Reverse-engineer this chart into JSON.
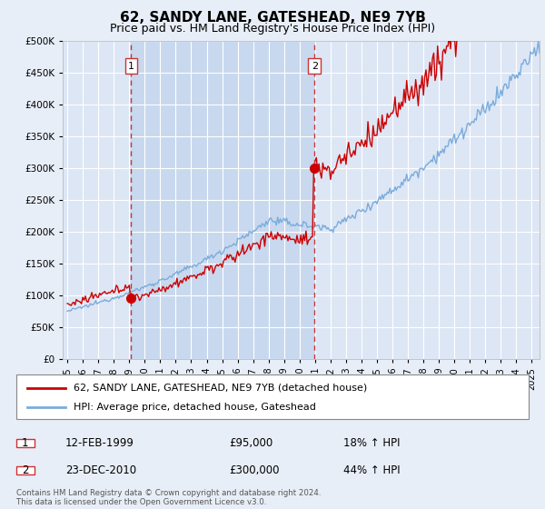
{
  "title": "62, SANDY LANE, GATESHEAD, NE9 7YB",
  "subtitle": "Price paid vs. HM Land Registry's House Price Index (HPI)",
  "ylim": [
    0,
    500000
  ],
  "xlim_start": 1994.7,
  "xlim_end": 2025.5,
  "bg_color": "#e8eef8",
  "plot_bg_color": "#dde6f5",
  "shade_color": "#c8d8ee",
  "grid_color": "#ffffff",
  "red_line_color": "#cc0000",
  "blue_line_color": "#7aacdc",
  "vline_color": "#cc3333",
  "marker1_x": 1999.12,
  "marker1_y": 95000,
  "marker2_x": 2010.97,
  "marker2_y": 300000,
  "legend_line1": "62, SANDY LANE, GATESHEAD, NE9 7YB (detached house)",
  "legend_line2": "HPI: Average price, detached house, Gateshead",
  "table_row1": [
    "1",
    "12-FEB-1999",
    "£95,000",
    "18% ↑ HPI"
  ],
  "table_row2": [
    "2",
    "23-DEC-2010",
    "£300,000",
    "44% ↑ HPI"
  ],
  "footer": "Contains HM Land Registry data © Crown copyright and database right 2024.\nThis data is licensed under the Open Government Licence v3.0.",
  "title_fontsize": 11,
  "subtitle_fontsize": 9
}
